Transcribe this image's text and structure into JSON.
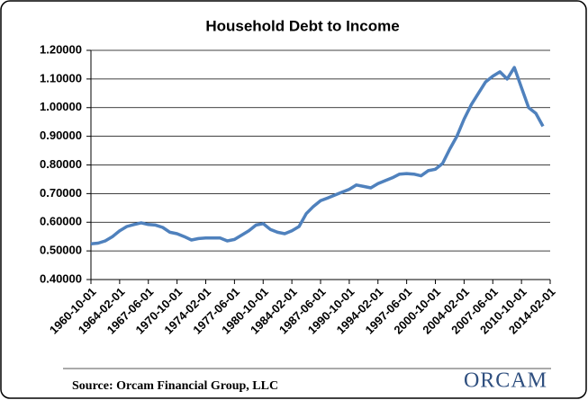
{
  "chart_data": {
    "type": "line",
    "title": "Household Debt to Income",
    "categories": [
      "1960-10-01",
      null,
      null,
      null,
      "1964-02-01",
      null,
      null,
      null,
      "1967-06-01",
      null,
      null,
      null,
      "1970-10-01",
      null,
      null,
      null,
      "1974-02-01",
      null,
      null,
      null,
      "1977-06-01",
      null,
      null,
      null,
      "1980-10-01",
      null,
      null,
      null,
      "1984-02-01",
      null,
      null,
      null,
      "1987-06-01",
      null,
      null,
      null,
      "1990-10-01",
      null,
      null,
      null,
      "1994-02-01",
      null,
      null,
      null,
      "1997-06-01",
      null,
      null,
      null,
      "2000-10-01",
      null,
      null,
      null,
      "2004-02-01",
      null,
      null,
      null,
      "2007-06-01",
      null,
      null,
      null,
      "2010-10-01",
      null,
      null,
      null,
      "2014-02-01"
    ],
    "values": [
      0.525,
      0.527,
      0.535,
      0.55,
      0.57,
      0.585,
      0.592,
      0.598,
      0.592,
      0.59,
      0.582,
      0.565,
      0.56,
      0.55,
      0.538,
      0.543,
      0.545,
      0.545,
      0.545,
      0.535,
      0.54,
      0.555,
      0.57,
      0.59,
      0.595,
      0.575,
      0.565,
      0.56,
      0.57,
      0.585,
      0.63,
      0.655,
      0.675,
      0.685,
      0.695,
      0.705,
      0.715,
      0.73,
      0.725,
      0.72,
      0.735,
      0.745,
      0.755,
      0.768,
      0.77,
      0.768,
      0.762,
      0.78,
      0.785,
      0.805,
      0.855,
      0.9,
      0.96,
      1.01,
      1.05,
      1.09,
      1.11,
      1.125,
      1.1,
      1.14,
      1.07,
      1.0,
      0.98,
      0.935,
      null
    ],
    "color": "#4f81bd",
    "ylim": [
      0.4,
      1.2
    ],
    "yticks": [
      {
        "value": 0.4,
        "label": "0.40000"
      },
      {
        "value": 0.5,
        "label": "0.50000"
      },
      {
        "value": 0.6,
        "label": "0.60000"
      },
      {
        "value": 0.7,
        "label": "0.70000"
      },
      {
        "value": 0.8,
        "label": "0.80000"
      },
      {
        "value": 0.9,
        "label": "0.90000"
      },
      {
        "value": 1.0,
        "label": "1.00000"
      },
      {
        "value": 1.1,
        "label": "1.10000"
      },
      {
        "value": 1.2,
        "label": "1.20000"
      }
    ],
    "grid": true
  },
  "source": "Source: Orcam Financial Group, LLC",
  "logo": "ORCAM"
}
